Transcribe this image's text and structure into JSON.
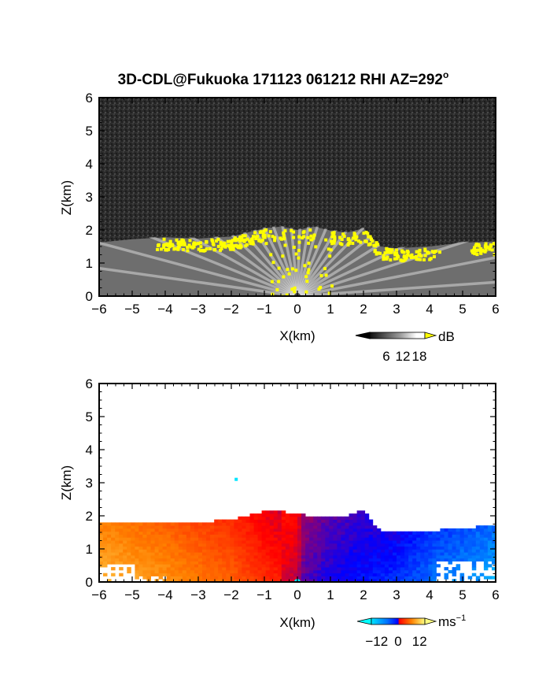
{
  "figure": {
    "title": "3D-CDL@Fukuoka 171123 061212 RHI AZ=292",
    "title_superscript": "o"
  },
  "chart_data": [
    {
      "type": "heatmap",
      "field": "backscatter",
      "xlabel": "X(km)",
      "ylabel": "Z(km)",
      "xlim": [
        -6,
        6
      ],
      "ylim": [
        0,
        6
      ],
      "xticks": [
        "-6",
        "-5",
        "-4",
        "-3",
        "-2",
        "-1",
        "0",
        "1",
        "2",
        "3",
        "4",
        "5",
        "6"
      ],
      "yticks": [
        "0",
        "1",
        "2",
        "3",
        "4",
        "5",
        "6"
      ],
      "colorbar": {
        "unit": "dB",
        "tick_labels": [
          "6",
          "12",
          "18"
        ],
        "tick_values": [
          6,
          12,
          18
        ],
        "range": [
          0,
          20
        ],
        "colors": [
          "#000000",
          "#ffffff",
          "#ffff00"
        ]
      },
      "echo_top_km": [
        [
          -6,
          1.62
        ],
        [
          -5,
          1.72
        ],
        [
          -4,
          1.78
        ],
        [
          -3,
          1.74
        ],
        [
          -2,
          1.8
        ],
        [
          -1,
          2.05
        ],
        [
          -0.5,
          2.1
        ],
        [
          0,
          2.0
        ],
        [
          0.5,
          2.1
        ],
        [
          1,
          1.98
        ],
        [
          1.5,
          1.92
        ],
        [
          2,
          2.05
        ],
        [
          2.5,
          1.5
        ],
        [
          3,
          1.45
        ],
        [
          4,
          1.5
        ],
        [
          5,
          1.62
        ],
        [
          6,
          1.65
        ]
      ],
      "grid": false
    },
    {
      "type": "heatmap",
      "field": "doppler_velocity",
      "xlabel": "X(km)",
      "ylabel": "Z(km)",
      "xlim": [
        -6,
        6
      ],
      "ylim": [
        0,
        6
      ],
      "xticks": [
        "-6",
        "-5",
        "-4",
        "-3",
        "-2",
        "-1",
        "0",
        "1",
        "2",
        "3",
        "4",
        "5",
        "6"
      ],
      "yticks": [
        "0",
        "1",
        "2",
        "3",
        "4",
        "5",
        "6"
      ],
      "colorbar": {
        "unit": "ms",
        "unit_superscript": "-1",
        "tick_labels": [
          "-12",
          "0",
          "12"
        ],
        "tick_values": [
          -12,
          0,
          12
        ],
        "range": [
          -15,
          15
        ],
        "colors": [
          "#00e5ff",
          "#0000ff",
          "#ff0000",
          "#ff8000",
          "#ffff80"
        ]
      },
      "velocity_profile": {
        "x_km": [
          -6,
          -4,
          -2,
          -1,
          0,
          0.2,
          1,
          2,
          3,
          4,
          6
        ],
        "v_ms": [
          9,
          7,
          4,
          1,
          -1,
          -4,
          -6,
          -7,
          -8,
          -10,
          -12
        ]
      },
      "echo_top_km": [
        [
          -6,
          1.75
        ],
        [
          -5,
          1.8
        ],
        [
          -4,
          1.8
        ],
        [
          -3,
          1.78
        ],
        [
          -2,
          1.82
        ],
        [
          -1,
          2.1
        ],
        [
          0,
          2.05
        ],
        [
          0.5,
          1.92
        ],
        [
          1,
          1.9
        ],
        [
          1.5,
          1.95
        ],
        [
          2,
          2.12
        ],
        [
          2.5,
          1.5
        ],
        [
          3,
          1.45
        ],
        [
          4,
          1.5
        ],
        [
          5,
          1.6
        ],
        [
          6,
          1.65
        ]
      ],
      "grid": false
    }
  ]
}
